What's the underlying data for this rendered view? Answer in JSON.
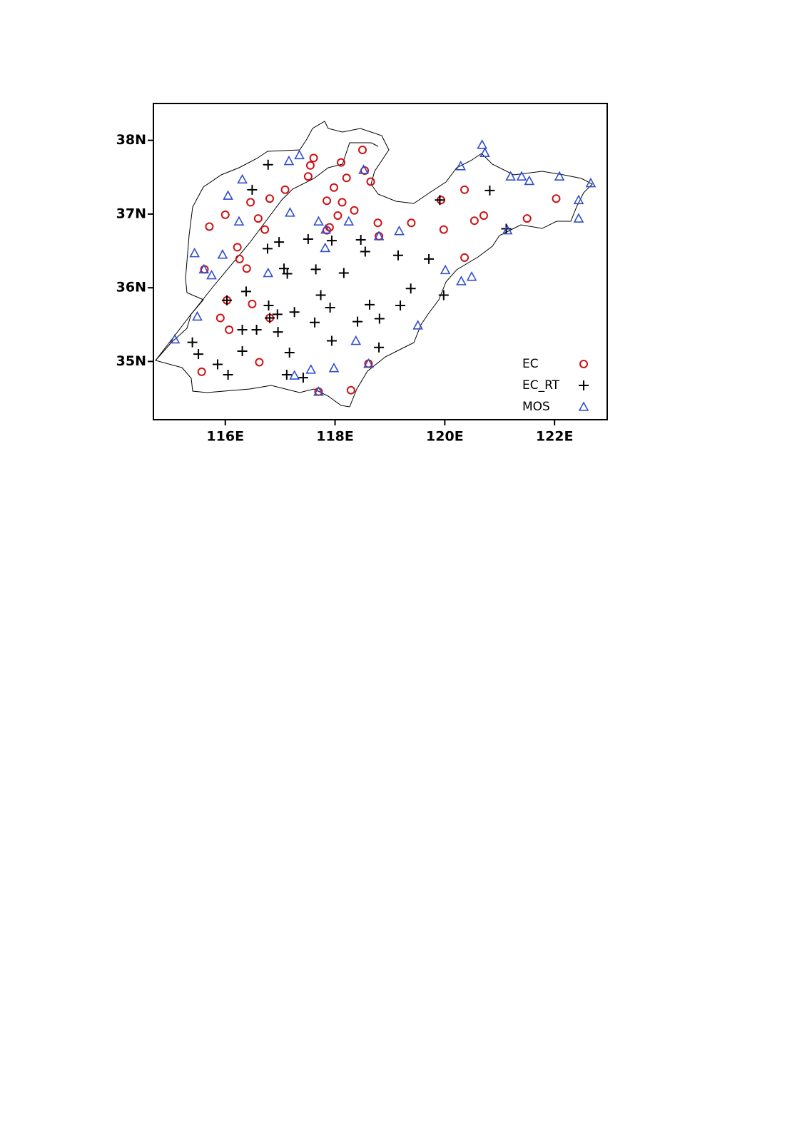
{
  "chart_data": {
    "type": "scatter",
    "xlim": [
      114.69,
      122.96
    ],
    "ylim": [
      34.21,
      38.5
    ],
    "xticks": [
      {
        "value": 116,
        "label": "116E"
      },
      {
        "value": 118,
        "label": "118E"
      },
      {
        "value": 120,
        "label": "120E"
      },
      {
        "value": 122,
        "label": "122E"
      }
    ],
    "yticks": [
      {
        "value": 35,
        "label": "35N"
      },
      {
        "value": 36,
        "label": "36N"
      },
      {
        "value": 37,
        "label": "37N"
      },
      {
        "value": 38,
        "label": "38N"
      }
    ],
    "legend": "lower right",
    "series": [
      {
        "name": "EC",
        "color": "#d01010",
        "marker": "circle",
        "x": [
          117.61,
          118.5,
          118.11,
          117.55,
          117.51,
          118.21,
          118.65,
          117.09,
          117.98,
          116.81,
          116.46,
          117.85,
          118.13,
          118.35,
          116.0,
          115.71,
          116.6,
          118.05,
          118.78,
          119.39,
          116.72,
          117.9,
          117.85,
          119.98,
          120.36,
          120.71,
          120.54,
          121.5,
          122.03,
          116.22,
          116.26,
          116.39,
          115.62,
          116.03,
          116.49,
          115.91,
          116.07,
          116.81,
          116.62,
          115.57,
          118.61,
          118.29,
          117.7,
          120.36,
          119.93,
          118.8,
          118.54
        ],
        "values": [
          37.76,
          37.87,
          37.7,
          37.66,
          37.51,
          37.49,
          37.44,
          37.33,
          37.36,
          37.21,
          37.16,
          37.18,
          37.16,
          37.05,
          36.99,
          36.83,
          36.94,
          36.98,
          36.88,
          36.88,
          36.79,
          36.82,
          36.78,
          36.79,
          37.33,
          36.98,
          36.91,
          36.94,
          37.21,
          36.55,
          36.39,
          36.26,
          36.25,
          35.83,
          35.78,
          35.59,
          35.43,
          35.59,
          34.99,
          34.86,
          34.97,
          34.61,
          34.59,
          36.41,
          37.19,
          36.7,
          37.59
        ]
      },
      {
        "name": "EC_RT",
        "color": "#000000",
        "marker": "plus",
        "x": [
          116.78,
          116.49,
          120.82,
          119.91,
          116.77,
          116.98,
          117.51,
          117.94,
          118.47,
          118.55,
          119.15,
          119.71,
          117.07,
          117.13,
          117.65,
          118.16,
          121.12,
          117.74,
          117.91,
          116.38,
          116.03,
          116.79,
          116.95,
          117.26,
          117.63,
          118.41,
          118.63,
          118.81,
          119.19,
          119.38,
          119.98,
          116.81,
          116.31,
          116.57,
          116.96,
          115.4,
          115.51,
          117.94,
          118.8,
          116.31,
          117.17,
          115.86,
          116.05,
          117.12,
          117.42
        ],
        "values": [
          37.67,
          37.33,
          37.32,
          37.19,
          36.53,
          36.62,
          36.66,
          36.64,
          36.65,
          36.49,
          36.44,
          36.39,
          36.26,
          36.19,
          36.25,
          36.2,
          36.8,
          35.9,
          35.73,
          35.95,
          35.83,
          35.76,
          35.64,
          35.67,
          35.53,
          35.54,
          35.77,
          35.58,
          35.76,
          35.99,
          35.9,
          35.59,
          35.43,
          35.43,
          35.4,
          35.26,
          35.1,
          35.28,
          35.19,
          35.14,
          35.12,
          34.96,
          34.82,
          34.82,
          34.78
        ]
      },
      {
        "name": "MOS",
        "color": "#2f4fd0",
        "marker": "triangle",
        "x": [
          117.35,
          117.16,
          116.31,
          116.05,
          118.52,
          120.68,
          120.73,
          120.29,
          121.2,
          121.4,
          121.54,
          122.09,
          122.66,
          122.44,
          122.44,
          117.18,
          116.25,
          117.7,
          118.25,
          119.17,
          118.8,
          117.83,
          117.82,
          116.78,
          115.44,
          115.95,
          115.61,
          115.75,
          120.01,
          120.3,
          120.49,
          115.49,
          115.08,
          119.51,
          118.38,
          117.56,
          117.98,
          117.26,
          118.61,
          117.7,
          121.14
        ],
        "values": [
          37.8,
          37.72,
          37.47,
          37.25,
          37.6,
          37.94,
          37.83,
          37.65,
          37.51,
          37.51,
          37.45,
          37.51,
          37.42,
          37.19,
          36.94,
          37.02,
          36.9,
          36.9,
          36.9,
          36.77,
          36.7,
          36.79,
          36.54,
          36.2,
          36.47,
          36.45,
          36.25,
          36.17,
          36.24,
          36.09,
          36.15,
          35.61,
          35.3,
          35.49,
          35.28,
          34.89,
          34.91,
          34.81,
          34.97,
          34.59,
          36.78
        ]
      }
    ]
  }
}
